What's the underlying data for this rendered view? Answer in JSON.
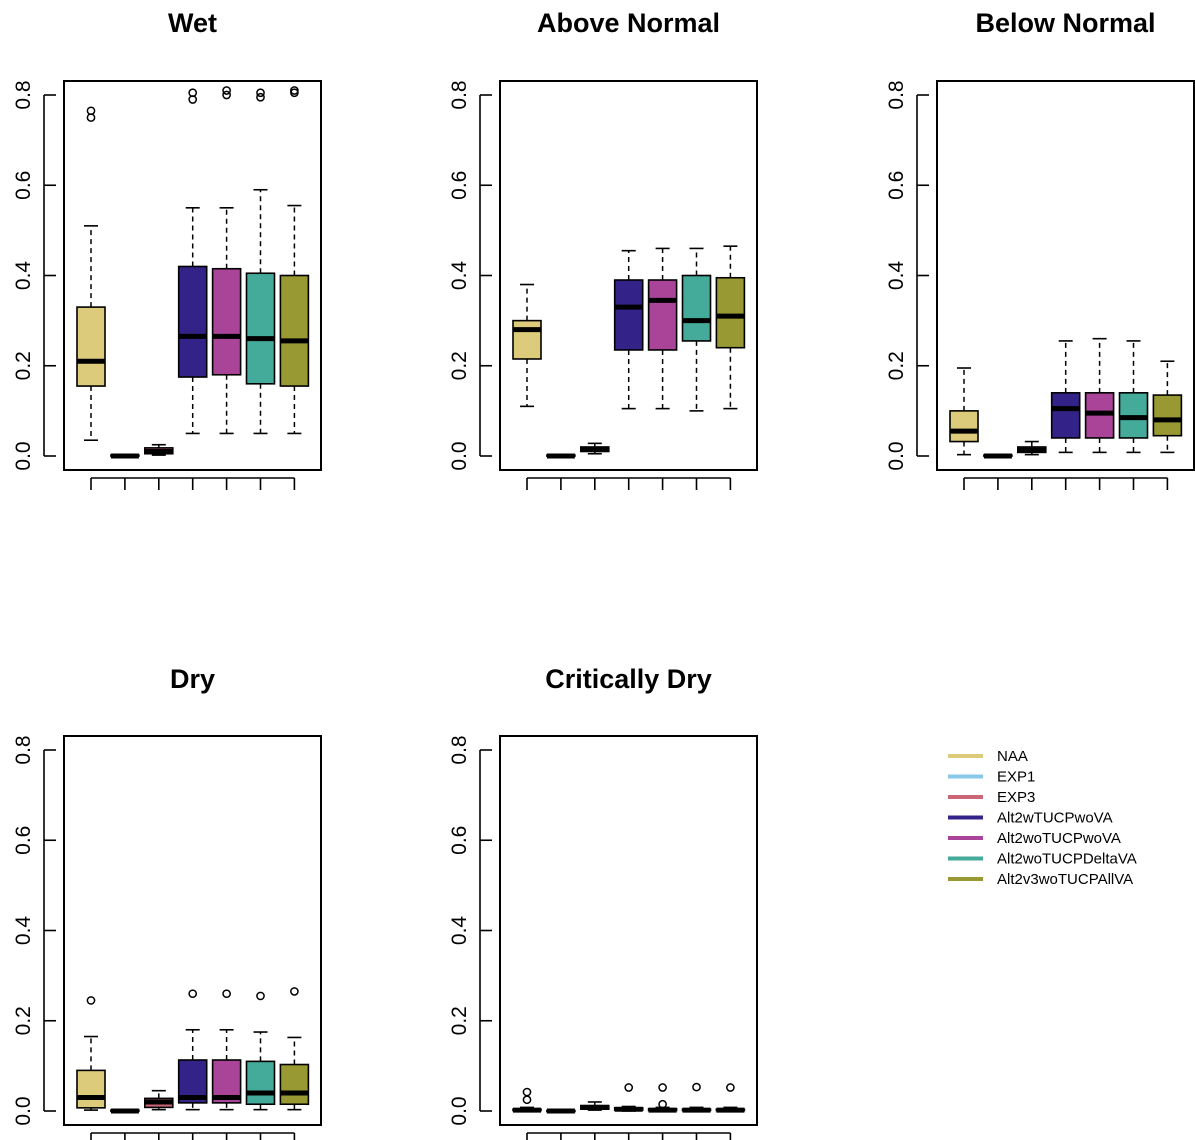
{
  "colors": {
    "NAA": "#dccb7a",
    "EXP1": "#88c8ea",
    "EXP3": "#cc6677",
    "Alt2wTUCPwoVA": "#332288",
    "Alt2woTUCPwoVA": "#aa4499",
    "Alt2woTUCPDeltaVA": "#44aa99",
    "Alt2v3woTUCPAllVA": "#999933"
  },
  "legend": {
    "items": [
      {
        "label": "NAA",
        "color": "#dccb7a"
      },
      {
        "label": "EXP1",
        "color": "#88c8ea"
      },
      {
        "label": "EXP3",
        "color": "#cc6677"
      },
      {
        "label": "Alt2wTUCPwoVA",
        "color": "#332288"
      },
      {
        "label": "Alt2woTUCPwoVA",
        "color": "#aa4499"
      },
      {
        "label": "Alt2woTUCPDeltaVA",
        "color": "#44aa99"
      },
      {
        "label": "Alt2v3woTUCPAllVA",
        "color": "#999933"
      }
    ]
  },
  "chart_data": [
    {
      "type": "boxplot",
      "title": "Wet",
      "ylim": [
        0,
        0.8
      ],
      "yticks": [
        "0.0",
        "0.2",
        "0.4",
        "0.6",
        "0.8"
      ],
      "boxes": [
        {
          "series": "NAA",
          "min": 0.035,
          "q1": 0.155,
          "median": 0.21,
          "q3": 0.33,
          "max": 0.51,
          "outliers": [
            0.75,
            0.765
          ]
        },
        {
          "series": "EXP1",
          "min": 0.0,
          "q1": 0.0,
          "median": 0.0,
          "q3": 0.002,
          "max": 0.003,
          "outliers": []
        },
        {
          "series": "EXP3",
          "min": 0.002,
          "q1": 0.005,
          "median": 0.01,
          "q3": 0.018,
          "max": 0.025,
          "outliers": []
        },
        {
          "series": "Alt2wTUCPwoVA",
          "min": 0.05,
          "q1": 0.175,
          "median": 0.265,
          "q3": 0.42,
          "max": 0.55,
          "outliers": [
            0.79,
            0.805
          ]
        },
        {
          "series": "Alt2woTUCPwoVA",
          "min": 0.05,
          "q1": 0.18,
          "median": 0.265,
          "q3": 0.415,
          "max": 0.55,
          "outliers": [
            0.8,
            0.81
          ]
        },
        {
          "series": "Alt2woTUCPDeltaVA",
          "min": 0.05,
          "q1": 0.16,
          "median": 0.26,
          "q3": 0.405,
          "max": 0.59,
          "outliers": [
            0.795,
            0.805
          ]
        },
        {
          "series": "Alt2v3woTUCPAllVA",
          "min": 0.05,
          "q1": 0.155,
          "median": 0.255,
          "q3": 0.4,
          "max": 0.555,
          "outliers": [
            0.805,
            0.81
          ]
        }
      ]
    },
    {
      "type": "boxplot",
      "title": "Above Normal",
      "ylim": [
        0,
        0.8
      ],
      "yticks": [
        "0.0",
        "0.2",
        "0.4",
        "0.6",
        "0.8"
      ],
      "boxes": [
        {
          "series": "NAA",
          "min": 0.11,
          "q1": 0.215,
          "median": 0.28,
          "q3": 0.3,
          "max": 0.38,
          "outliers": []
        },
        {
          "series": "EXP1",
          "min": 0.0,
          "q1": 0.0,
          "median": 0.0,
          "q3": 0.002,
          "max": 0.003,
          "outliers": []
        },
        {
          "series": "EXP3",
          "min": 0.005,
          "q1": 0.01,
          "median": 0.015,
          "q3": 0.02,
          "max": 0.028,
          "outliers": []
        },
        {
          "series": "Alt2wTUCPwoVA",
          "min": 0.105,
          "q1": 0.235,
          "median": 0.33,
          "q3": 0.39,
          "max": 0.455,
          "outliers": []
        },
        {
          "series": "Alt2woTUCPwoVA",
          "min": 0.105,
          "q1": 0.235,
          "median": 0.345,
          "q3": 0.39,
          "max": 0.46,
          "outliers": []
        },
        {
          "series": "Alt2woTUCPDeltaVA",
          "min": 0.1,
          "q1": 0.255,
          "median": 0.3,
          "q3": 0.4,
          "max": 0.46,
          "outliers": []
        },
        {
          "series": "Alt2v3woTUCPAllVA",
          "min": 0.105,
          "q1": 0.24,
          "median": 0.31,
          "q3": 0.395,
          "max": 0.465,
          "outliers": []
        }
      ]
    },
    {
      "type": "boxplot",
      "title": "Below Normal",
      "ylim": [
        0,
        0.8
      ],
      "yticks": [
        "0.0",
        "0.2",
        "0.4",
        "0.6",
        "0.8"
      ],
      "boxes": [
        {
          "series": "NAA",
          "min": 0.003,
          "q1": 0.032,
          "median": 0.055,
          "q3": 0.1,
          "max": 0.195,
          "outliers": []
        },
        {
          "series": "EXP1",
          "min": 0.0,
          "q1": 0.0,
          "median": 0.0,
          "q3": 0.002,
          "max": 0.003,
          "outliers": []
        },
        {
          "series": "EXP3",
          "min": 0.003,
          "q1": 0.008,
          "median": 0.013,
          "q3": 0.02,
          "max": 0.032,
          "outliers": []
        },
        {
          "series": "Alt2wTUCPwoVA",
          "min": 0.008,
          "q1": 0.04,
          "median": 0.105,
          "q3": 0.14,
          "max": 0.255,
          "outliers": []
        },
        {
          "series": "Alt2woTUCPwoVA",
          "min": 0.008,
          "q1": 0.04,
          "median": 0.095,
          "q3": 0.14,
          "max": 0.26,
          "outliers": []
        },
        {
          "series": "Alt2woTUCPDeltaVA",
          "min": 0.008,
          "q1": 0.04,
          "median": 0.085,
          "q3": 0.14,
          "max": 0.255,
          "outliers": []
        },
        {
          "series": "Alt2v3woTUCPAllVA",
          "min": 0.008,
          "q1": 0.045,
          "median": 0.08,
          "q3": 0.135,
          "max": 0.21,
          "outliers": []
        }
      ]
    },
    {
      "type": "boxplot",
      "title": "Dry",
      "ylim": [
        0,
        0.8
      ],
      "yticks": [
        "0.0",
        "0.2",
        "0.4",
        "0.6",
        "0.8"
      ],
      "boxes": [
        {
          "series": "NAA",
          "min": 0.002,
          "q1": 0.007,
          "median": 0.03,
          "q3": 0.09,
          "max": 0.165,
          "outliers": [
            0.245
          ]
        },
        {
          "series": "EXP1",
          "min": 0.0,
          "q1": 0.0,
          "median": 0.0,
          "q3": 0.002,
          "max": 0.003,
          "outliers": []
        },
        {
          "series": "EXP3",
          "min": 0.003,
          "q1": 0.008,
          "median": 0.02,
          "q3": 0.028,
          "max": 0.045,
          "outliers": []
        },
        {
          "series": "Alt2wTUCPwoVA",
          "min": 0.003,
          "q1": 0.018,
          "median": 0.03,
          "q3": 0.113,
          "max": 0.18,
          "outliers": [
            0.26
          ]
        },
        {
          "series": "Alt2woTUCPwoVA",
          "min": 0.003,
          "q1": 0.018,
          "median": 0.03,
          "q3": 0.113,
          "max": 0.18,
          "outliers": [
            0.26
          ]
        },
        {
          "series": "Alt2woTUCPDeltaVA",
          "min": 0.003,
          "q1": 0.015,
          "median": 0.04,
          "q3": 0.11,
          "max": 0.175,
          "outliers": [
            0.255
          ]
        },
        {
          "series": "Alt2v3woTUCPAllVA",
          "min": 0.003,
          "q1": 0.015,
          "median": 0.04,
          "q3": 0.103,
          "max": 0.163,
          "outliers": [
            0.265
          ]
        }
      ]
    },
    {
      "type": "boxplot",
      "title": "Critically Dry",
      "ylim": [
        0,
        0.8
      ],
      "yticks": [
        "0.0",
        "0.2",
        "0.4",
        "0.6",
        "0.8"
      ],
      "boxes": [
        {
          "series": "NAA",
          "min": 0.0,
          "q1": 0.001,
          "median": 0.002,
          "q3": 0.004,
          "max": 0.008,
          "outliers": [
            0.025,
            0.042
          ]
        },
        {
          "series": "EXP1",
          "min": 0.0,
          "q1": 0.0,
          "median": 0.0,
          "q3": 0.001,
          "max": 0.002,
          "outliers": []
        },
        {
          "series": "EXP3",
          "min": 0.002,
          "q1": 0.004,
          "median": 0.008,
          "q3": 0.012,
          "max": 0.02,
          "outliers": []
        },
        {
          "series": "Alt2wTUCPwoVA",
          "min": 0.0,
          "q1": 0.002,
          "median": 0.004,
          "q3": 0.007,
          "max": 0.01,
          "outliers": [
            0.052
          ]
        },
        {
          "series": "Alt2woTUCPwoVA",
          "min": 0.0,
          "q1": 0.001,
          "median": 0.002,
          "q3": 0.005,
          "max": 0.008,
          "outliers": [
            0.015,
            0.052
          ]
        },
        {
          "series": "Alt2woTUCPDeltaVA",
          "min": 0.0,
          "q1": 0.001,
          "median": 0.002,
          "q3": 0.004,
          "max": 0.008,
          "outliers": [
            0.053
          ]
        },
        {
          "series": "Alt2v3woTUCPAllVA",
          "min": 0.0,
          "q1": 0.001,
          "median": 0.002,
          "q3": 0.004,
          "max": 0.008,
          "outliers": [
            0.052
          ]
        }
      ]
    }
  ]
}
